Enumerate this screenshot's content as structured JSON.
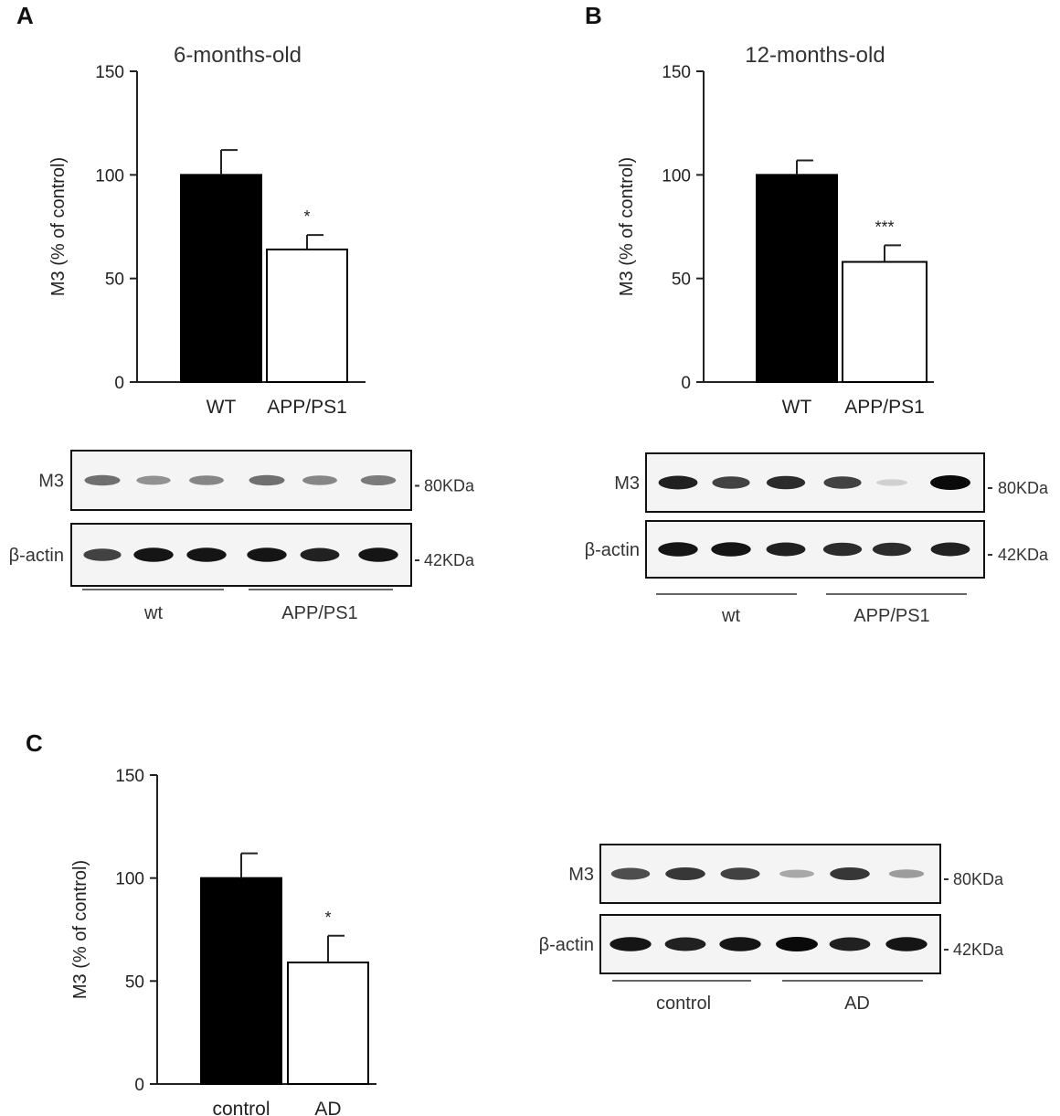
{
  "chart_data": [
    {
      "panel": "A",
      "type": "bar",
      "title": "6-months-old",
      "ylabel": "M3 (% of control)",
      "xlabel": "",
      "ylim": [
        0,
        150
      ],
      "yticks": [
        0,
        50,
        100,
        150
      ],
      "categories": [
        "WT",
        "APP/PS1"
      ],
      "values": [
        100,
        64
      ],
      "errors": [
        12,
        7
      ],
      "significance": [
        "",
        "*"
      ],
      "bar_colors": [
        "#000000",
        "#ffffff"
      ],
      "blot": {
        "rows": [
          {
            "label": "M3",
            "kda": "80KDa",
            "intensity": [
              0.55,
              0.4,
              0.45,
              0.55,
              0.45,
              0.5
            ]
          },
          {
            "label": "β-actin",
            "kda": "42KDa",
            "intensity": [
              0.75,
              0.95,
              0.95,
              0.95,
              0.9,
              0.95
            ]
          }
        ],
        "groups": [
          "wt",
          "APP/PS1"
        ]
      }
    },
    {
      "panel": "B",
      "type": "bar",
      "title": "12-months-old",
      "ylabel": "M3 (% of control)",
      "xlabel": "",
      "ylim": [
        0,
        150
      ],
      "yticks": [
        0,
        50,
        100,
        150
      ],
      "categories": [
        "WT",
        "APP/PS1"
      ],
      "values": [
        100,
        58
      ],
      "errors": [
        7,
        8
      ],
      "significance": [
        "",
        "***"
      ],
      "bar_colors": [
        "#000000",
        "#ffffff"
      ],
      "blot": {
        "rows": [
          {
            "label": "M3",
            "kda": "80KDa",
            "intensity": [
              0.9,
              0.75,
              0.85,
              0.75,
              0.12,
              1.0
            ]
          },
          {
            "label": "β-actin",
            "kda": "42KDa",
            "intensity": [
              0.95,
              0.95,
              0.9,
              0.85,
              0.85,
              0.9
            ]
          }
        ],
        "groups": [
          "wt",
          "APP/PS1"
        ]
      }
    },
    {
      "panel": "C",
      "type": "bar",
      "title": "",
      "ylabel": "M3 (% of control)",
      "xlabel": "",
      "ylim": [
        0,
        150
      ],
      "yticks": [
        0,
        50,
        100,
        150
      ],
      "categories": [
        "control",
        "AD"
      ],
      "values": [
        100,
        59
      ],
      "errors": [
        12,
        13
      ],
      "significance": [
        "",
        "*"
      ],
      "bar_colors": [
        "#000000",
        "#ffffff"
      ],
      "blot": {
        "rows": [
          {
            "label": "M3",
            "kda": "80KDa",
            "intensity": [
              0.7,
              0.8,
              0.75,
              0.3,
              0.8,
              0.35
            ]
          },
          {
            "label": "β-actin",
            "kda": "42KDa",
            "intensity": [
              0.95,
              0.9,
              0.95,
              1.0,
              0.9,
              0.95
            ]
          }
        ],
        "groups": [
          "control",
          "AD"
        ]
      }
    }
  ]
}
